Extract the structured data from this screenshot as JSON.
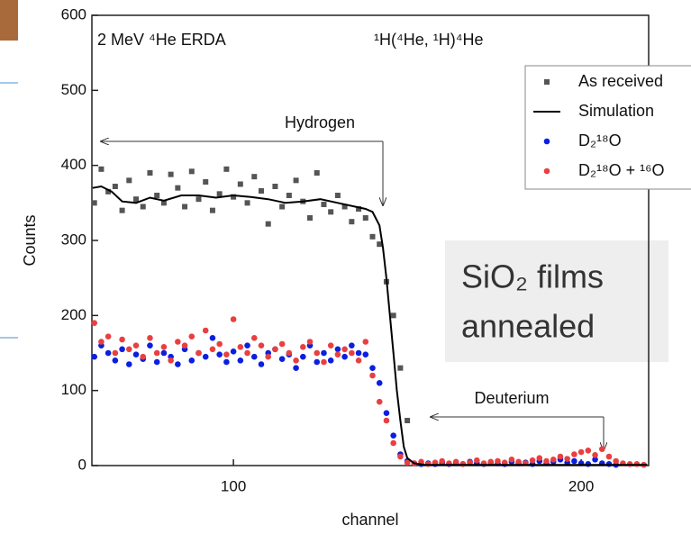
{
  "chart_data": {
    "type": "scatter",
    "title": "2 MeV ⁴He ERDA",
    "subtitle": "¹H(⁴He, ¹H)⁴He",
    "x_label": "channel",
    "y_label": "Counts",
    "xlim": [
      59.3,
      219.4
    ],
    "ylim": [
      0,
      600
    ],
    "xticks": [
      100,
      200
    ],
    "yticks": [
      0,
      100,
      200,
      300,
      400,
      500,
      600
    ],
    "legend": "top-right",
    "annotations": {
      "hydrogen": "Hydrogen",
      "deuterium": "Deuterium",
      "box": [
        "SiO₂ films",
        "annealed"
      ]
    },
    "series": [
      {
        "name": "As received",
        "color": "#555555",
        "marker": "square",
        "x": [
          60,
          62,
          64,
          66,
          68,
          70,
          72,
          74,
          76,
          78,
          80,
          82,
          84,
          86,
          88,
          90,
          92,
          94,
          96,
          98,
          100,
          102,
          104,
          106,
          108,
          110,
          112,
          114,
          116,
          118,
          120,
          122,
          124,
          126,
          128,
          130,
          132,
          134,
          136,
          138,
          140,
          142,
          144,
          146,
          148,
          150
        ],
        "values": [
          350,
          395,
          365,
          372,
          340,
          380,
          355,
          345,
          390,
          360,
          350,
          388,
          370,
          345,
          392,
          355,
          378,
          340,
          362,
          395,
          358,
          375,
          350,
          385,
          366,
          322,
          372,
          345,
          360,
          380,
          352,
          330,
          390,
          348,
          338,
          360,
          345,
          325,
          342,
          330,
          305,
          295,
          245,
          200,
          130,
          60
        ]
      },
      {
        "name": "Simulation",
        "color": "#000000",
        "marker": "line",
        "x": [
          59.5,
          62,
          65,
          68,
          72,
          76,
          80,
          85,
          90,
          95,
          100,
          105,
          110,
          115,
          120,
          125,
          130,
          135,
          138,
          140,
          142,
          143,
          144,
          145,
          146,
          147,
          148,
          149,
          150,
          152,
          155,
          160,
          170,
          180,
          190,
          200,
          210,
          219
        ],
        "values": [
          370,
          372,
          365,
          352,
          350,
          357,
          353,
          360,
          360,
          357,
          360,
          358,
          355,
          350,
          352,
          355,
          350,
          345,
          342,
          338,
          320,
          290,
          250,
          200,
          150,
          100,
          60,
          25,
          10,
          3,
          1,
          1,
          1,
          1,
          1,
          1,
          1,
          1
        ]
      },
      {
        "name": "D₂¹⁸O",
        "color": "#0a1fe0",
        "marker": "circle",
        "x": [
          60,
          62,
          64,
          66,
          68,
          70,
          72,
          74,
          76,
          78,
          80,
          82,
          84,
          86,
          88,
          90,
          92,
          94,
          96,
          98,
          100,
          102,
          104,
          106,
          108,
          110,
          112,
          114,
          116,
          118,
          120,
          122,
          124,
          126,
          128,
          130,
          132,
          134,
          136,
          138,
          140,
          142,
          144,
          146,
          148,
          150,
          152,
          154,
          156,
          158,
          160,
          162,
          164,
          166,
          168,
          170,
          172,
          174,
          176,
          178,
          180,
          182,
          184,
          186,
          188,
          190,
          192,
          194,
          196,
          198,
          200,
          202,
          204,
          206,
          208,
          210
        ],
        "values": [
          145,
          160,
          150,
          140,
          155,
          135,
          148,
          142,
          160,
          138,
          150,
          145,
          135,
          155,
          140,
          150,
          145,
          170,
          148,
          138,
          152,
          140,
          160,
          145,
          135,
          150,
          155,
          142,
          148,
          130,
          145,
          160,
          138,
          150,
          140,
          155,
          145,
          160,
          150,
          148,
          130,
          110,
          70,
          40,
          15,
          6,
          3,
          2,
          3,
          2,
          4,
          2,
          3,
          2,
          5,
          3,
          2,
          4,
          3,
          2,
          5,
          3,
          4,
          2,
          6,
          3,
          5,
          8,
          4,
          6,
          3,
          2,
          8,
          3,
          2,
          1
        ]
      },
      {
        "name": "D₂¹⁸O + ¹⁶O",
        "color": "#e84040",
        "marker": "circle",
        "x": [
          60,
          62,
          64,
          66,
          68,
          70,
          72,
          74,
          76,
          78,
          80,
          82,
          84,
          86,
          88,
          90,
          92,
          94,
          96,
          98,
          100,
          102,
          104,
          106,
          108,
          110,
          112,
          114,
          116,
          118,
          120,
          122,
          124,
          126,
          128,
          130,
          132,
          134,
          136,
          138,
          140,
          142,
          144,
          146,
          148,
          150,
          152,
          154,
          156,
          158,
          160,
          162,
          164,
          166,
          168,
          170,
          172,
          174,
          176,
          178,
          180,
          182,
          184,
          186,
          188,
          190,
          192,
          194,
          196,
          198,
          200,
          202,
          204,
          206,
          208,
          210,
          212,
          214,
          216,
          218
        ],
        "values": [
          190,
          165,
          172,
          150,
          168,
          155,
          160,
          145,
          170,
          150,
          158,
          140,
          165,
          160,
          172,
          150,
          180,
          155,
          162,
          148,
          195,
          158,
          150,
          170,
          160,
          145,
          155,
          162,
          150,
          140,
          158,
          165,
          150,
          138,
          160,
          148,
          155,
          150,
          140,
          165,
          120,
          85,
          60,
          30,
          12,
          4,
          3,
          5,
          2,
          4,
          6,
          3,
          5,
          2,
          4,
          7,
          3,
          5,
          6,
          4,
          8,
          5,
          3,
          7,
          10,
          6,
          8,
          12,
          9,
          15,
          18,
          20,
          14,
          22,
          12,
          6,
          3,
          2,
          2,
          1
        ]
      }
    ]
  }
}
